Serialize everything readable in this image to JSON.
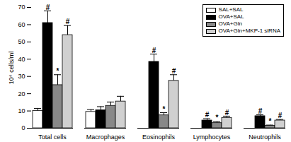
{
  "chart_data": {
    "type": "bar",
    "y_label": "10⁴ cells/ml",
    "categories": [
      "Total cells",
      "Macrophages",
      "Eosinophils",
      "Lymphocytes",
      "Neutrophils"
    ],
    "series": [
      {
        "name": "SAL+SAL",
        "color": "#ffffff",
        "values": [
          10,
          9.5,
          0,
          0,
          0
        ],
        "errors": [
          1.5,
          1.3,
          0,
          0,
          0
        ],
        "significance": [
          null,
          null,
          null,
          null,
          null
        ]
      },
      {
        "name": "OVA+SAL",
        "color": "#000000",
        "values": [
          61,
          10.5,
          38.5,
          4.5,
          7
        ],
        "errors": [
          7,
          2,
          4.5,
          1,
          0.8
        ],
        "significance": [
          "#",
          null,
          "#",
          "#",
          "#"
        ]
      },
      {
        "name": "OVA+Gln",
        "color": "#888888",
        "values": [
          25,
          13,
          7.5,
          3,
          1.5
        ],
        "errors": [
          6,
          2.2,
          1.5,
          0.8,
          0.3
        ],
        "significance": [
          "*",
          null,
          "*",
          "*",
          "*"
        ]
      },
      {
        "name": "OVA+Gln+MKP-1 siRNA",
        "color": "#d0d0d0",
        "values": [
          54,
          15.5,
          27.5,
          6,
          4.5
        ],
        "errors": [
          5.5,
          3,
          3.5,
          1,
          0.6
        ],
        "significance": [
          "#",
          null,
          "#",
          "#",
          "#"
        ]
      }
    ],
    "ylim": [
      0,
      70
    ],
    "yticks": [
      0,
      10,
      20,
      30,
      40,
      50,
      60,
      70
    ],
    "legend": "top-right",
    "grid": false
  }
}
